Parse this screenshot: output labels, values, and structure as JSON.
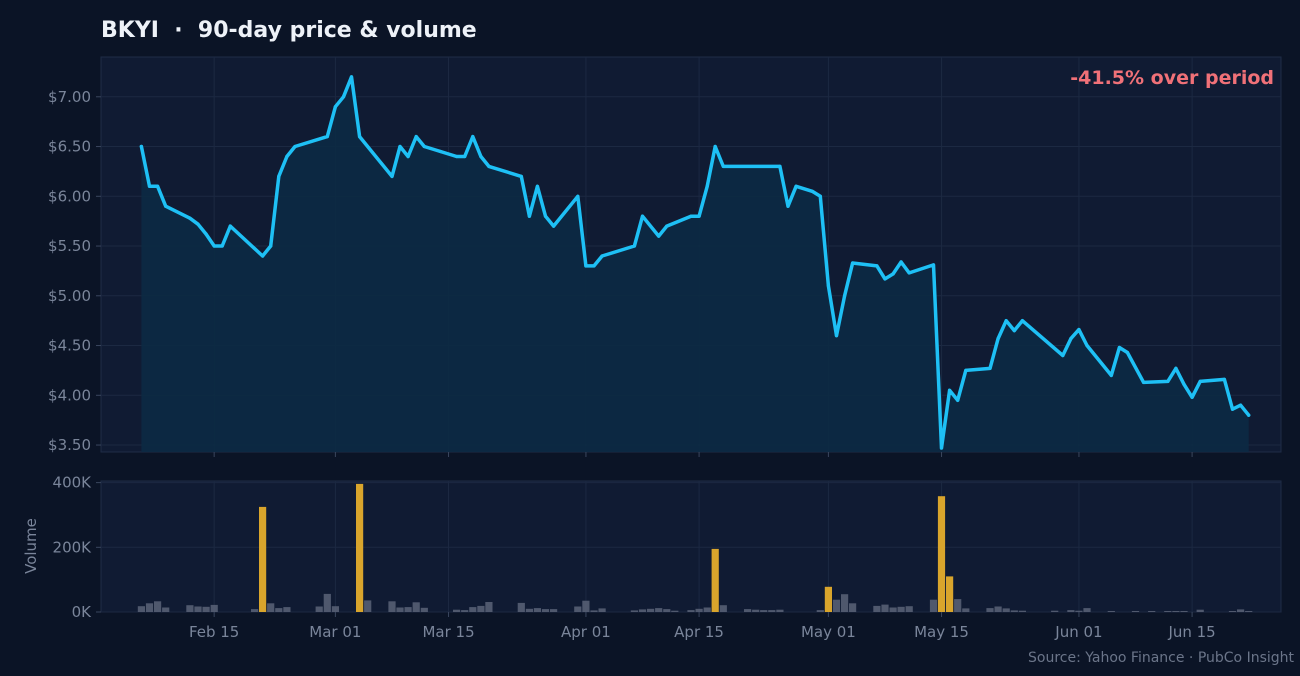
{
  "chart_data": [
    {
      "type": "line",
      "title": "BKYI  ·  90-day price & volume",
      "annotation": "-41.5% over period",
      "xlabel": "",
      "ylabel": "",
      "ylim": [
        3.43,
        7.4
      ],
      "yticks": [
        3.5,
        4.0,
        4.5,
        5.0,
        5.5,
        6.0,
        6.5,
        7.0
      ],
      "ytick_labels": [
        "$3.50",
        "$4.00",
        "$4.50",
        "$5.00",
        "$5.50",
        "$6.00",
        "$6.50",
        "$7.00"
      ],
      "grid": true,
      "fill": "area",
      "series": [
        {
          "values": [
            [
              "2024-02-06",
              6.5
            ],
            [
              "2024-02-07",
              6.1
            ],
            [
              "2024-02-08",
              6.1
            ],
            [
              "2024-02-09",
              5.9
            ],
            [
              "2024-02-12",
              5.78
            ],
            [
              "2024-02-13",
              5.72
            ],
            [
              "2024-02-14",
              5.62
            ],
            [
              "2024-02-15",
              5.5
            ],
            [
              "2024-02-16",
              5.5
            ],
            [
              "2024-02-17",
              5.7
            ],
            [
              "2024-02-21",
              5.4
            ],
            [
              "2024-02-22",
              5.5
            ],
            [
              "2024-02-23",
              6.2
            ],
            [
              "2024-02-24",
              6.4
            ],
            [
              "2024-02-25",
              6.5
            ],
            [
              "2024-02-29",
              6.6
            ],
            [
              "2024-03-01",
              6.9
            ],
            [
              "2024-03-02",
              7.0
            ],
            [
              "2024-03-03",
              7.2
            ],
            [
              "2024-03-04",
              6.6
            ],
            [
              "2024-03-08",
              6.2
            ],
            [
              "2024-03-09",
              6.5
            ],
            [
              "2024-03-10",
              6.4
            ],
            [
              "2024-03-11",
              6.6
            ],
            [
              "2024-03-12",
              6.5
            ],
            [
              "2024-03-14",
              6.45
            ],
            [
              "2024-03-16",
              6.4
            ],
            [
              "2024-03-17",
              6.4
            ],
            [
              "2024-03-18",
              6.6
            ],
            [
              "2024-03-19",
              6.4
            ],
            [
              "2024-03-20",
              6.3
            ],
            [
              "2024-03-24",
              6.2
            ],
            [
              "2024-03-25",
              5.8
            ],
            [
              "2024-03-26",
              6.1
            ],
            [
              "2024-03-27",
              5.8
            ],
            [
              "2024-03-28",
              5.7
            ],
            [
              "2024-03-31",
              6.0
            ],
            [
              "2024-04-01",
              5.3
            ],
            [
              "2024-04-02",
              5.3
            ],
            [
              "2024-04-03",
              5.4
            ],
            [
              "2024-04-07",
              5.5
            ],
            [
              "2024-04-08",
              5.8
            ],
            [
              "2024-04-10",
              5.6
            ],
            [
              "2024-04-11",
              5.7
            ],
            [
              "2024-04-14",
              5.8
            ],
            [
              "2024-04-15",
              5.8
            ],
            [
              "2024-04-16",
              6.1
            ],
            [
              "2024-04-17",
              6.5
            ],
            [
              "2024-04-18",
              6.3
            ],
            [
              "2024-04-25",
              6.3
            ],
            [
              "2024-04-26",
              5.9
            ],
            [
              "2024-04-27",
              6.1
            ],
            [
              "2024-04-29",
              6.05
            ],
            [
              "2024-04-30",
              6.0
            ],
            [
              "2024-05-01",
              5.1
            ],
            [
              "2024-05-02",
              4.6
            ],
            [
              "2024-05-03",
              5.0
            ],
            [
              "2024-05-04",
              5.33
            ],
            [
              "2024-05-07",
              5.3
            ],
            [
              "2024-05-08",
              5.17
            ],
            [
              "2024-05-09",
              5.22
            ],
            [
              "2024-05-10",
              5.34
            ],
            [
              "2024-05-11",
              5.23
            ],
            [
              "2024-05-14",
              5.31
            ],
            [
              "2024-05-15",
              3.47
            ],
            [
              "2024-05-16",
              4.05
            ],
            [
              "2024-05-17",
              3.95
            ],
            [
              "2024-05-18",
              4.25
            ],
            [
              "2024-05-21",
              4.27
            ],
            [
              "2024-05-22",
              4.57
            ],
            [
              "2024-05-23",
              4.75
            ],
            [
              "2024-05-24",
              4.65
            ],
            [
              "2024-05-25",
              4.75
            ],
            [
              "2024-05-30",
              4.4
            ],
            [
              "2024-05-31",
              4.57
            ],
            [
              "2024-06-01",
              4.66
            ],
            [
              "2024-06-02",
              4.5
            ],
            [
              "2024-06-05",
              4.2
            ],
            [
              "2024-06-06",
              4.48
            ],
            [
              "2024-06-07",
              4.43
            ],
            [
              "2024-06-09",
              4.13
            ],
            [
              "2024-06-12",
              4.14
            ],
            [
              "2024-06-13",
              4.27
            ],
            [
              "2024-06-14",
              4.11
            ],
            [
              "2024-06-15",
              3.98
            ],
            [
              "2024-06-16",
              4.14
            ],
            [
              "2024-06-19",
              4.16
            ],
            [
              "2024-06-20",
              3.86
            ],
            [
              "2024-06-21",
              3.9
            ],
            [
              "2024-06-22",
              3.8
            ]
          ]
        }
      ]
    },
    {
      "type": "bar",
      "ylabel": "Volume",
      "ylim": [
        0,
        405000
      ],
      "yticks": [
        0,
        200000,
        400000
      ],
      "ytick_labels": [
        "0K",
        "200K",
        "400K"
      ],
      "grid": true,
      "x_range": [
        "2024-02-01",
        "2024-06-26"
      ],
      "xticks": [
        "2024-02-15",
        "2024-03-01",
        "2024-03-15",
        "2024-04-01",
        "2024-04-15",
        "2024-05-01",
        "2024-05-15",
        "2024-06-01",
        "2024-06-15"
      ],
      "xtick_labels": [
        "Feb 15",
        "Mar 01",
        "Mar 15",
        "Apr 01",
        "Apr 15",
        "May 01",
        "May 15",
        "Jun 01",
        "Jun 15"
      ],
      "colors": {
        "normal": "#5a6378",
        "spike": "#d9a52c"
      },
      "bars": [
        [
          "2024-02-06",
          18000,
          "normal"
        ],
        [
          "2024-02-07",
          27000,
          "normal"
        ],
        [
          "2024-02-08",
          33000,
          "normal"
        ],
        [
          "2024-02-09",
          14000,
          "normal"
        ],
        [
          "2024-02-12",
          21000,
          "normal"
        ],
        [
          "2024-02-13",
          17000,
          "normal"
        ],
        [
          "2024-02-14",
          16000,
          "normal"
        ],
        [
          "2024-02-15",
          22000,
          "normal"
        ],
        [
          "2024-02-20",
          9000,
          "normal"
        ],
        [
          "2024-02-21",
          325000,
          "spike"
        ],
        [
          "2024-02-22",
          27000,
          "normal"
        ],
        [
          "2024-02-23",
          12000,
          "normal"
        ],
        [
          "2024-02-24",
          15000,
          "normal"
        ],
        [
          "2024-02-28",
          17000,
          "normal"
        ],
        [
          "2024-02-29",
          56000,
          "normal"
        ],
        [
          "2024-03-01",
          18000,
          "normal"
        ],
        [
          "2024-03-04",
          396000,
          "spike"
        ],
        [
          "2024-03-05",
          36000,
          "normal"
        ],
        [
          "2024-03-08",
          33000,
          "normal"
        ],
        [
          "2024-03-09",
          14000,
          "normal"
        ],
        [
          "2024-03-10",
          15000,
          "normal"
        ],
        [
          "2024-03-11",
          30000,
          "normal"
        ],
        [
          "2024-03-12",
          13000,
          "normal"
        ],
        [
          "2024-03-16",
          7000,
          "normal"
        ],
        [
          "2024-03-17",
          6000,
          "normal"
        ],
        [
          "2024-03-18",
          15000,
          "normal"
        ],
        [
          "2024-03-19",
          19000,
          "normal"
        ],
        [
          "2024-03-20",
          31000,
          "normal"
        ],
        [
          "2024-03-24",
          28000,
          "normal"
        ],
        [
          "2024-03-25",
          10000,
          "normal"
        ],
        [
          "2024-03-26",
          12000,
          "normal"
        ],
        [
          "2024-03-27",
          9000,
          "normal"
        ],
        [
          "2024-03-28",
          9000,
          "normal"
        ],
        [
          "2024-03-31",
          17000,
          "normal"
        ],
        [
          "2024-04-01",
          35000,
          "normal"
        ],
        [
          "2024-04-02",
          5000,
          "normal"
        ],
        [
          "2024-04-03",
          11000,
          "normal"
        ],
        [
          "2024-04-07",
          5000,
          "normal"
        ],
        [
          "2024-04-08",
          8000,
          "normal"
        ],
        [
          "2024-04-09",
          10000,
          "normal"
        ],
        [
          "2024-04-10",
          12000,
          "normal"
        ],
        [
          "2024-04-11",
          9000,
          "normal"
        ],
        [
          "2024-04-12",
          4000,
          "normal"
        ],
        [
          "2024-04-14",
          6000,
          "normal"
        ],
        [
          "2024-04-15",
          10000,
          "normal"
        ],
        [
          "2024-04-16",
          14000,
          "normal"
        ],
        [
          "2024-04-17",
          195000,
          "spike"
        ],
        [
          "2024-04-18",
          21000,
          "normal"
        ],
        [
          "2024-04-21",
          9000,
          "normal"
        ],
        [
          "2024-04-22",
          7000,
          "normal"
        ],
        [
          "2024-04-23",
          6000,
          "normal"
        ],
        [
          "2024-04-24",
          6000,
          "normal"
        ],
        [
          "2024-04-25",
          7000,
          "normal"
        ],
        [
          "2024-04-30",
          6000,
          "normal"
        ],
        [
          "2024-05-01",
          78000,
          "spike"
        ],
        [
          "2024-05-02",
          38000,
          "normal"
        ],
        [
          "2024-05-03",
          55000,
          "normal"
        ],
        [
          "2024-05-04",
          27000,
          "normal"
        ],
        [
          "2024-05-07",
          19000,
          "normal"
        ],
        [
          "2024-05-08",
          23000,
          "normal"
        ],
        [
          "2024-05-09",
          14000,
          "normal"
        ],
        [
          "2024-05-10",
          16000,
          "normal"
        ],
        [
          "2024-05-11",
          18000,
          "normal"
        ],
        [
          "2024-05-14",
          38000,
          "normal"
        ],
        [
          "2024-05-15",
          358000,
          "spike"
        ],
        [
          "2024-05-16",
          110000,
          "spike"
        ],
        [
          "2024-05-17",
          40000,
          "normal"
        ],
        [
          "2024-05-18",
          11000,
          "normal"
        ],
        [
          "2024-05-21",
          12000,
          "normal"
        ],
        [
          "2024-05-22",
          17000,
          "normal"
        ],
        [
          "2024-05-23",
          11000,
          "normal"
        ],
        [
          "2024-05-24",
          5000,
          "normal"
        ],
        [
          "2024-05-25",
          4000,
          "normal"
        ],
        [
          "2024-05-29",
          4000,
          "normal"
        ],
        [
          "2024-05-31",
          6000,
          "normal"
        ],
        [
          "2024-06-01",
          4000,
          "normal"
        ],
        [
          "2024-06-02",
          12000,
          "normal"
        ],
        [
          "2024-06-05",
          3000,
          "normal"
        ],
        [
          "2024-06-08",
          3000,
          "normal"
        ],
        [
          "2024-06-10",
          3000,
          "normal"
        ],
        [
          "2024-06-12",
          3000,
          "normal"
        ],
        [
          "2024-06-13",
          3000,
          "normal"
        ],
        [
          "2024-06-14",
          3000,
          "normal"
        ],
        [
          "2024-06-16",
          7000,
          "normal"
        ],
        [
          "2024-06-20",
          3000,
          "normal"
        ],
        [
          "2024-06-21",
          8000,
          "normal"
        ],
        [
          "2024-06-22",
          3000,
          "normal"
        ]
      ]
    }
  ],
  "footer": {
    "source": "Source: Yahoo Finance · PubCo Insight"
  },
  "colors": {
    "background": "#0b1426",
    "panel": "#101b33",
    "line": "#1ec0f5",
    "fill": "#0c2a44",
    "negative": "#f07178",
    "text": "#eef2f8",
    "muted": "#7a859a"
  }
}
